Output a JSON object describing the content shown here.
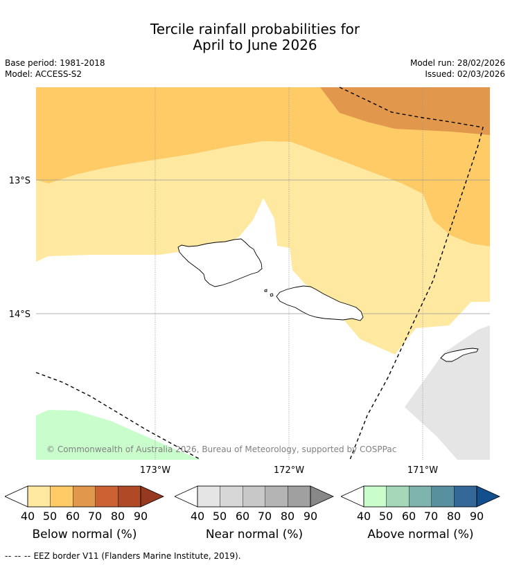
{
  "title": {
    "line1": "Tercile rainfall probabilities for",
    "line2": "April to June 2026"
  },
  "meta": {
    "base_period": "Base period: 1981-2018",
    "model": "Model: ACCESS-S2",
    "model_run": "Model run: 28/02/2026",
    "issued": "Issued: 02/03/2026"
  },
  "map": {
    "lat_labels": [
      "13°S",
      "14°S"
    ],
    "lon_labels": [
      "173°W",
      "172°W",
      "171°W"
    ],
    "copyright": "© Commonwealth of Australia 2026, Bureau of Meteorology, supported by COSPPac"
  },
  "legends": [
    {
      "name": "Below normal (%)",
      "ticks": [
        "40",
        "50",
        "60",
        "70",
        "80",
        "90"
      ],
      "colors": [
        "#ffe9a1",
        "#fecb66",
        "#e1974c",
        "#cc6133",
        "#b04a26",
        "#963920"
      ],
      "low_color": "#ffffff"
    },
    {
      "name": "Near normal (%)",
      "ticks": [
        "40",
        "50",
        "60",
        "70",
        "80",
        "90"
      ],
      "colors": [
        "#e5e5e5",
        "#d7d7d7",
        "#c8c8c8",
        "#b4b4b4",
        "#a0a0a0",
        "#888888"
      ],
      "low_color": "#ffffff"
    },
    {
      "name": "Above normal (%)",
      "ticks": [
        "40",
        "50",
        "60",
        "70",
        "80",
        "90"
      ],
      "colors": [
        "#c9fdcb",
        "#a4d8b9",
        "#7fb3ae",
        "#5890a0",
        "#336899",
        "#124f8c"
      ],
      "low_color": "#ffffff"
    }
  ],
  "footnote": {
    "symbol": "--  --  --",
    "text": "EEZ border V11 (Flanders Marine Institute, 2019)."
  }
}
